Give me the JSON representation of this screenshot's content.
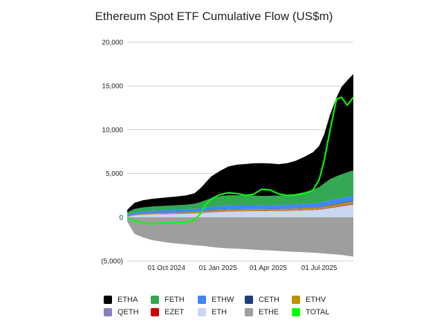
{
  "chart_data": {
    "type": "area",
    "title": "Ethereum Spot ETF Cumulative Flow (US$m)",
    "xlabel": "",
    "ylabel": "",
    "ylim": [
      -5000,
      20000
    ],
    "xlim": [
      "2024-07-23",
      "2025-08-31"
    ],
    "y_ticks": [
      20000,
      15000,
      10000,
      5000,
      0,
      -5000
    ],
    "y_tick_labels": [
      "20,000",
      "15,000",
      "10,000",
      "5,000",
      "0",
      "(5,000)"
    ],
    "x_ticks": [
      "2024-10-01",
      "2025-01-01",
      "2025-04-01",
      "2025-07-01"
    ],
    "x_tick_labels": [
      "01 Oct 2024",
      "01 Jan 2025",
      "01 Apr 2025",
      "01 Jul 2025"
    ],
    "grid": "horizontal",
    "legend_position": "bottom",
    "x": [
      "2024-07-23",
      "2024-08-05",
      "2024-08-20",
      "2024-09-05",
      "2024-09-20",
      "2024-10-05",
      "2024-10-20",
      "2024-11-05",
      "2024-11-20",
      "2024-12-01",
      "2024-12-10",
      "2024-12-20",
      "2025-01-05",
      "2025-01-20",
      "2025-02-05",
      "2025-02-20",
      "2025-03-05",
      "2025-03-20",
      "2025-04-05",
      "2025-04-20",
      "2025-05-05",
      "2025-05-20",
      "2025-06-05",
      "2025-06-20",
      "2025-07-01",
      "2025-07-10",
      "2025-07-20",
      "2025-08-01",
      "2025-08-10",
      "2025-08-20",
      "2025-08-31"
    ],
    "series": [
      {
        "name": "ETHE",
        "color": "#9e9e9e",
        "values": [
          -500,
          -1900,
          -2300,
          -2600,
          -2750,
          -2900,
          -3000,
          -3100,
          -3200,
          -3250,
          -3300,
          -3400,
          -3500,
          -3550,
          -3600,
          -3650,
          -3700,
          -3750,
          -3800,
          -3850,
          -3900,
          -3950,
          -4000,
          -4050,
          -4100,
          -4150,
          -4200,
          -4250,
          -4300,
          -4400,
          -4500
        ]
      },
      {
        "name": "ETH",
        "color": "#c9d7f0",
        "values": [
          50,
          200,
          280,
          320,
          340,
          360,
          380,
          400,
          430,
          470,
          520,
          560,
          620,
          660,
          680,
          690,
          700,
          700,
          710,
          720,
          740,
          760,
          790,
          820,
          860,
          940,
          1050,
          1150,
          1250,
          1350,
          1450
        ]
      },
      {
        "name": "EZET",
        "color": "#cc0000",
        "values": [
          5,
          10,
          12,
          14,
          15,
          16,
          17,
          18,
          20,
          22,
          24,
          26,
          28,
          30,
          30,
          30,
          30,
          30,
          30,
          30,
          32,
          34,
          36,
          38,
          40,
          44,
          48,
          52,
          56,
          58,
          60
        ]
      },
      {
        "name": "QETH",
        "color": "#8e7cc3",
        "values": [
          5,
          10,
          12,
          14,
          15,
          16,
          17,
          18,
          20,
          22,
          24,
          26,
          28,
          30,
          30,
          30,
          30,
          30,
          30,
          30,
          32,
          34,
          36,
          38,
          40,
          44,
          48,
          52,
          56,
          58,
          60
        ]
      },
      {
        "name": "ETHV",
        "color": "#bf9000",
        "values": [
          30,
          60,
          80,
          90,
          95,
          100,
          105,
          110,
          120,
          130,
          140,
          150,
          160,
          165,
          165,
          165,
          165,
          165,
          165,
          165,
          170,
          175,
          180,
          185,
          190,
          200,
          210,
          220,
          230,
          240,
          250
        ]
      },
      {
        "name": "CETH",
        "color": "#1c3f7a",
        "values": [
          5,
          10,
          12,
          14,
          15,
          16,
          17,
          18,
          20,
          22,
          24,
          26,
          28,
          30,
          30,
          30,
          30,
          30,
          30,
          30,
          32,
          34,
          36,
          38,
          40,
          44,
          48,
          52,
          56,
          58,
          60
        ]
      },
      {
        "name": "ETHW",
        "color": "#4285f4",
        "values": [
          150,
          240,
          270,
          290,
          300,
          310,
          320,
          330,
          350,
          380,
          400,
          420,
          440,
          440,
          430,
          420,
          410,
          400,
          400,
          400,
          410,
          420,
          440,
          460,
          480,
          510,
          540,
          560,
          560,
          570,
          580
        ]
      },
      {
        "name": "FETH",
        "color": "#34a853",
        "values": [
          300,
          420,
          460,
          480,
          500,
          510,
          520,
          540,
          580,
          680,
          820,
          950,
          1100,
          1150,
          1150,
          1120,
          1100,
          1080,
          1080,
          1090,
          1120,
          1200,
          1350,
          1550,
          1800,
          2100,
          2400,
          2600,
          2700,
          2800,
          2900
        ]
      },
      {
        "name": "ETHA",
        "color": "#000000",
        "values": [
          300,
          700,
          820,
          880,
          920,
          960,
          1000,
          1060,
          1200,
          1600,
          2000,
          2500,
          2900,
          3300,
          3500,
          3600,
          3700,
          3750,
          3700,
          3600,
          3650,
          3800,
          4050,
          4300,
          4700,
          5600,
          7300,
          9000,
          10000,
          10500,
          11000
        ]
      },
      {
        "name": "TOTAL",
        "color": "#00ff00",
        "line": true,
        "values": [
          -50,
          -450,
          -650,
          -750,
          -700,
          -650,
          -600,
          -550,
          -300,
          400,
          1400,
          2100,
          2600,
          2800,
          2700,
          2500,
          2600,
          3200,
          3100,
          2650,
          2500,
          2550,
          2700,
          3100,
          4300,
          6500,
          9800,
          13500,
          13700,
          12800,
          13700
        ]
      }
    ]
  }
}
